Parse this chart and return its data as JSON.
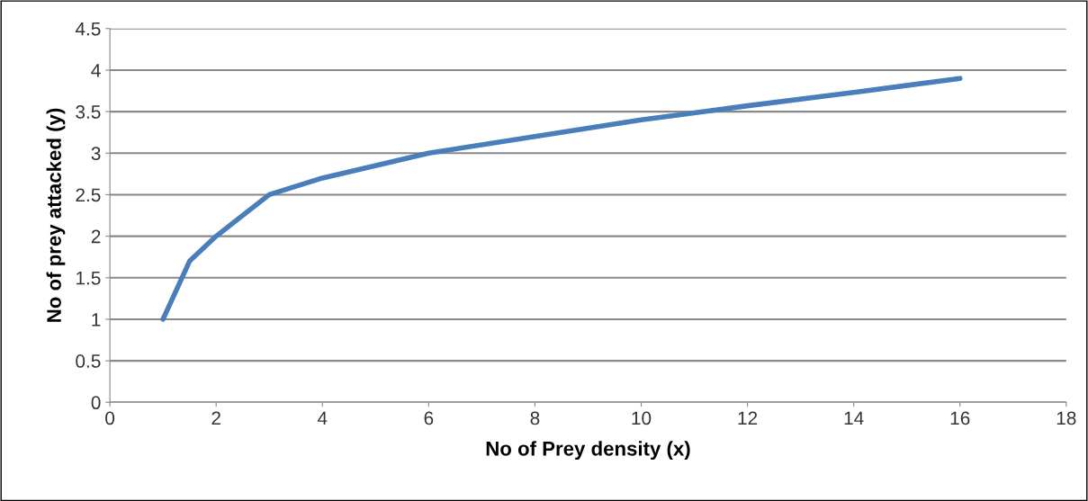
{
  "chart_data": {
    "type": "line",
    "xlabel": "No of Prey density (x)",
    "ylabel": "No of prey attacked (y)",
    "x": [
      1,
      1.5,
      2,
      3,
      4,
      6,
      8,
      10,
      12,
      14,
      16
    ],
    "series": [
      {
        "color": "#4a7ebb",
        "values": [
          1,
          1.7,
          2.0,
          2.5,
          2.7,
          3.0,
          3.2,
          3.4,
          3.57,
          3.73,
          3.9
        ]
      }
    ],
    "xlim": [
      0,
      18
    ],
    "xticks": [
      0,
      2,
      4,
      6,
      8,
      10,
      12,
      14,
      16,
      18
    ],
    "ylim": [
      0,
      4.5
    ],
    "yticks": [
      0,
      0.5,
      1,
      1.5,
      2,
      2.5,
      3,
      3.5,
      4,
      4.5
    ],
    "grid": "y",
    "legend": false,
    "marker": "none",
    "line_style": "solid"
  }
}
